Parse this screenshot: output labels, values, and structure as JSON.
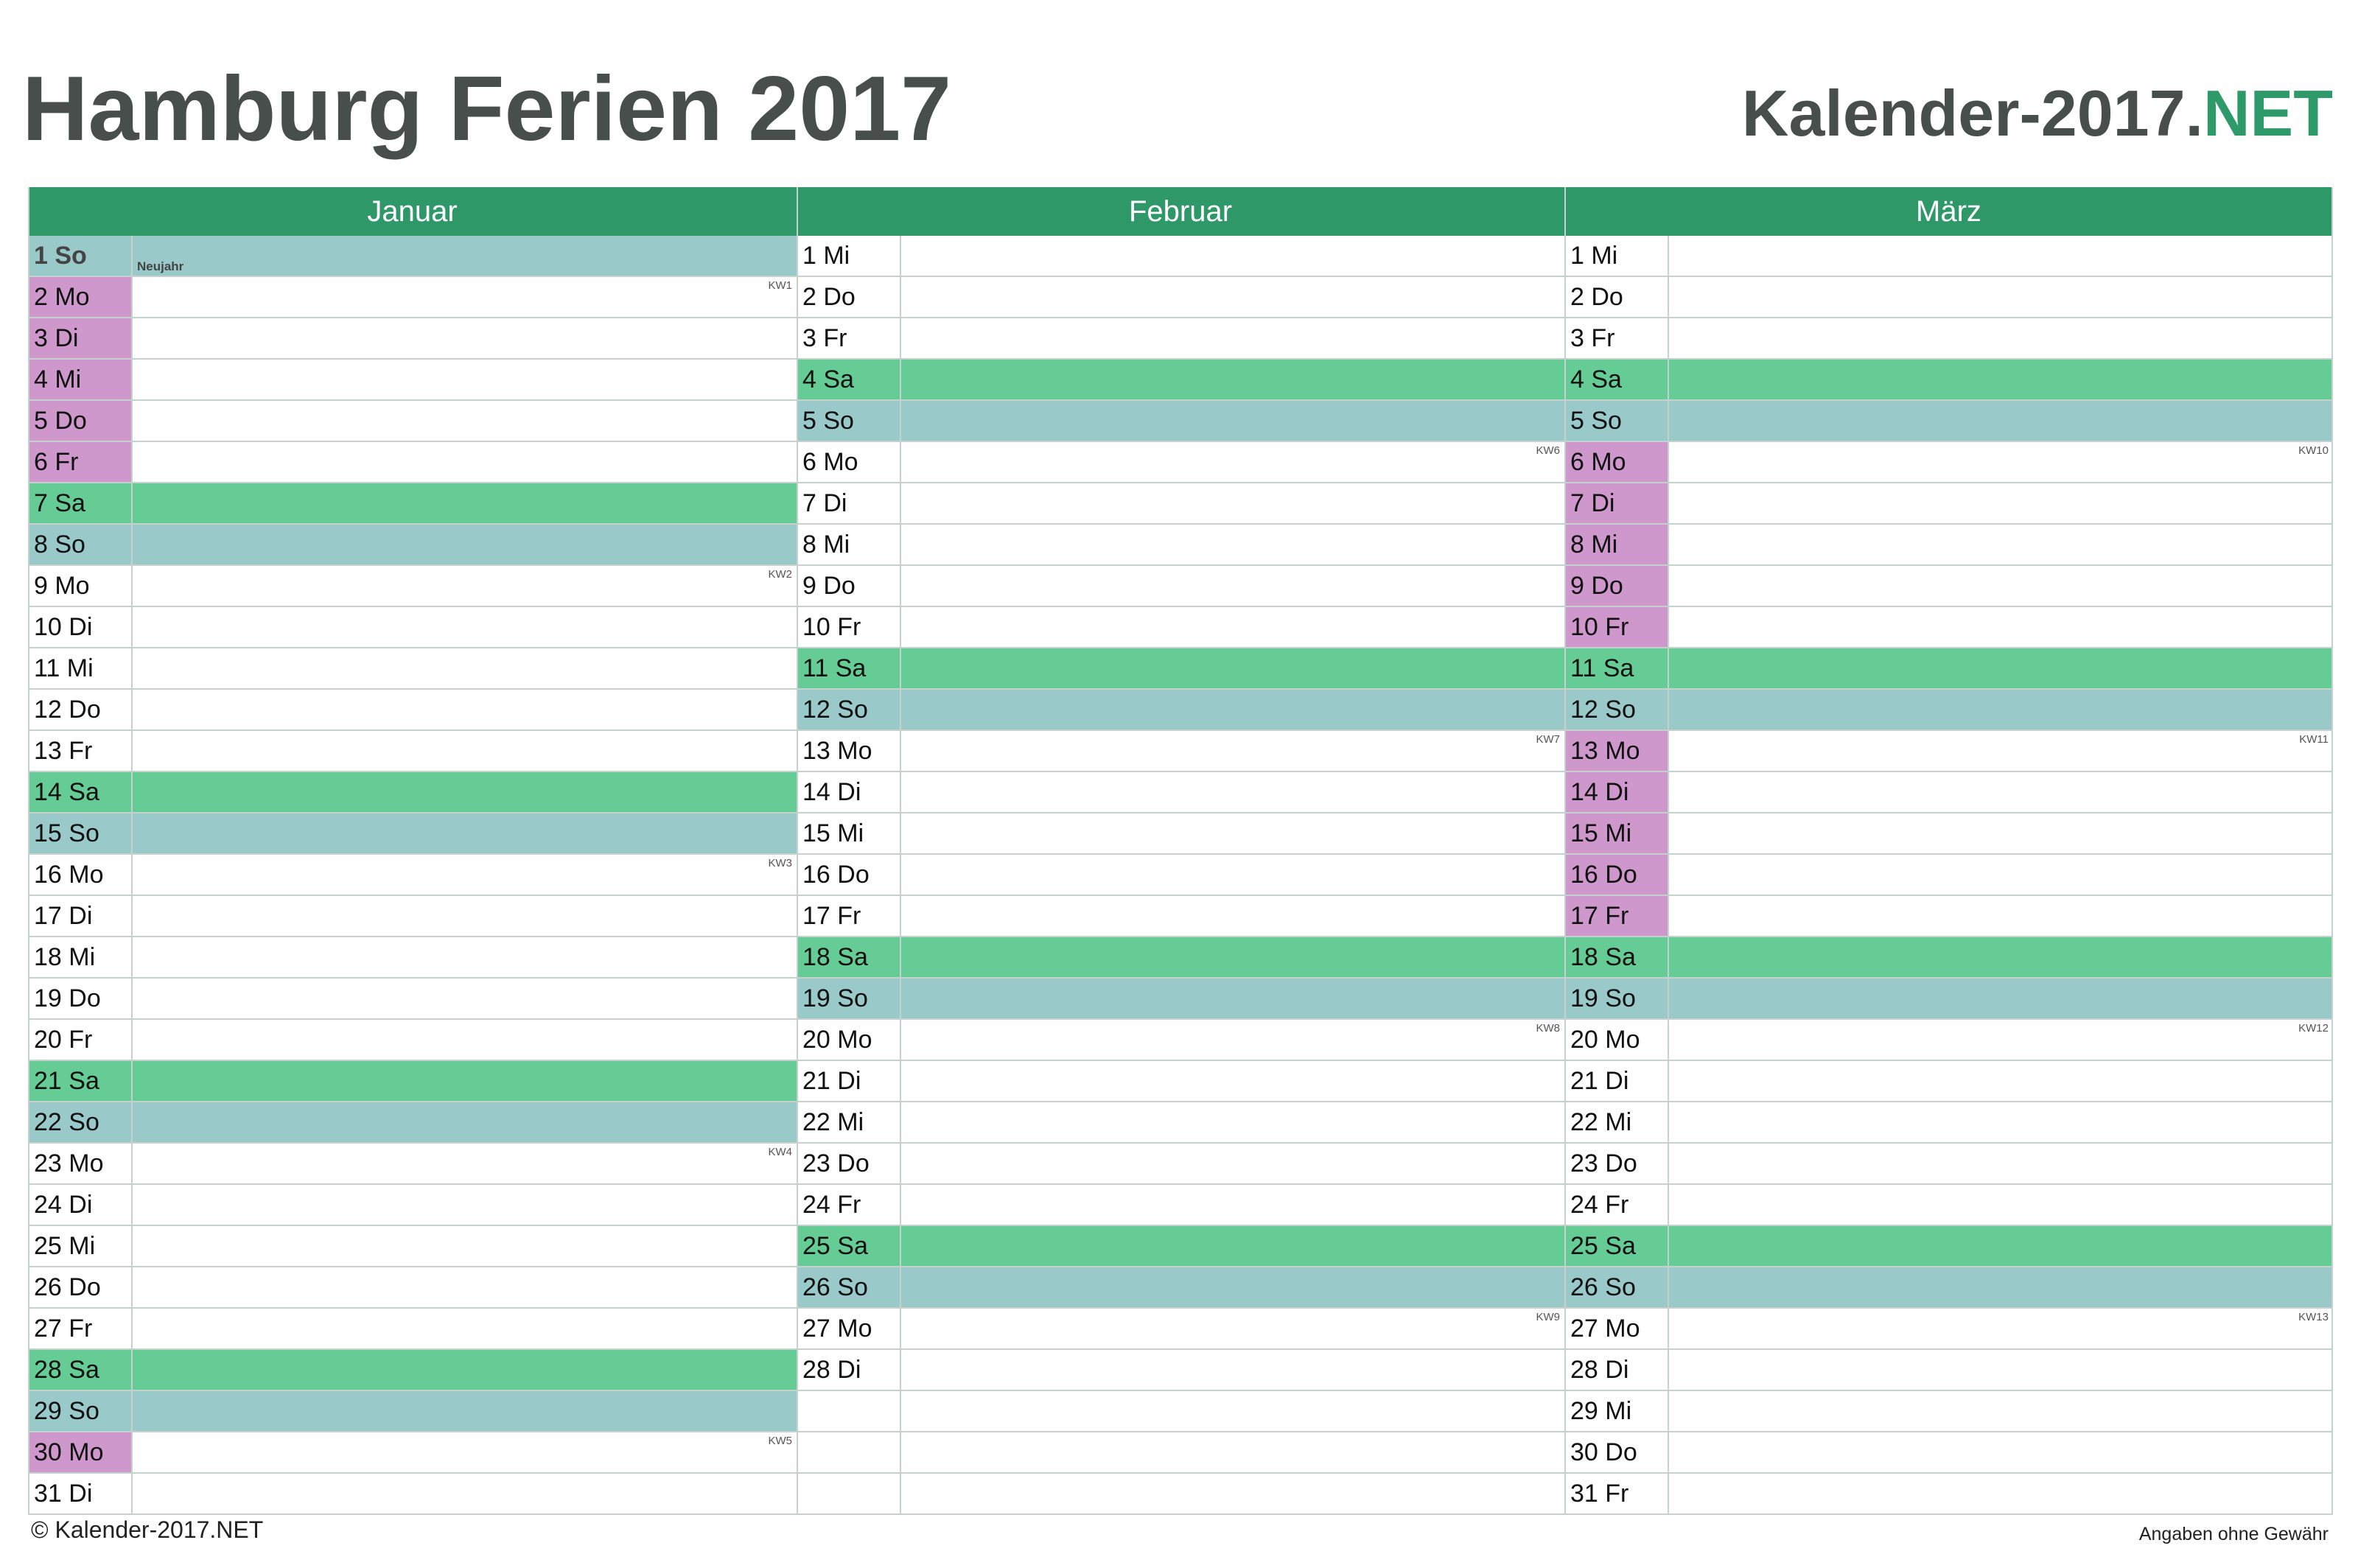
{
  "title": "Hamburg Ferien 2017",
  "brand": {
    "main": "Kalender-2017.",
    "suffix": "NET"
  },
  "colors": {
    "header": "#2f9869",
    "saturday": "#66cc96",
    "sunday": "#99c9c9",
    "vacation": "#cf98cc",
    "text": "#474e4c",
    "brand_accent": "#2e9a6a"
  },
  "months": [
    {
      "name": "Januar",
      "days": [
        {
          "label": "1 So",
          "type": "sun",
          "holiday": "Neujahr"
        },
        {
          "label": "2 Mo",
          "type": "vac",
          "kw": "KW1"
        },
        {
          "label": "3 Di",
          "type": "vac"
        },
        {
          "label": "4 Mi",
          "type": "vac"
        },
        {
          "label": "5 Do",
          "type": "vac"
        },
        {
          "label": "6 Fr",
          "type": "vac"
        },
        {
          "label": "7 Sa",
          "type": "sat"
        },
        {
          "label": "8 So",
          "type": "sun"
        },
        {
          "label": "9 Mo",
          "type": "",
          "kw": "KW2"
        },
        {
          "label": "10 Di",
          "type": ""
        },
        {
          "label": "11 Mi",
          "type": ""
        },
        {
          "label": "12 Do",
          "type": ""
        },
        {
          "label": "13 Fr",
          "type": ""
        },
        {
          "label": "14 Sa",
          "type": "sat"
        },
        {
          "label": "15 So",
          "type": "sun"
        },
        {
          "label": "16 Mo",
          "type": "",
          "kw": "KW3"
        },
        {
          "label": "17 Di",
          "type": ""
        },
        {
          "label": "18 Mi",
          "type": ""
        },
        {
          "label": "19 Do",
          "type": ""
        },
        {
          "label": "20 Fr",
          "type": ""
        },
        {
          "label": "21 Sa",
          "type": "sat"
        },
        {
          "label": "22 So",
          "type": "sun"
        },
        {
          "label": "23 Mo",
          "type": "",
          "kw": "KW4"
        },
        {
          "label": "24 Di",
          "type": ""
        },
        {
          "label": "25 Mi",
          "type": ""
        },
        {
          "label": "26 Do",
          "type": ""
        },
        {
          "label": "27 Fr",
          "type": ""
        },
        {
          "label": "28 Sa",
          "type": "sat"
        },
        {
          "label": "29 So",
          "type": "sun"
        },
        {
          "label": "30 Mo",
          "type": "vac",
          "kw": "KW5"
        },
        {
          "label": "31 Di",
          "type": ""
        }
      ]
    },
    {
      "name": "Februar",
      "days": [
        {
          "label": "1 Mi",
          "type": ""
        },
        {
          "label": "2 Do",
          "type": ""
        },
        {
          "label": "3 Fr",
          "type": ""
        },
        {
          "label": "4 Sa",
          "type": "sat"
        },
        {
          "label": "5 So",
          "type": "sun"
        },
        {
          "label": "6 Mo",
          "type": "",
          "kw": "KW6"
        },
        {
          "label": "7 Di",
          "type": ""
        },
        {
          "label": "8 Mi",
          "type": ""
        },
        {
          "label": "9 Do",
          "type": ""
        },
        {
          "label": "10 Fr",
          "type": ""
        },
        {
          "label": "11 Sa",
          "type": "sat"
        },
        {
          "label": "12 So",
          "type": "sun"
        },
        {
          "label": "13 Mo",
          "type": "",
          "kw": "KW7"
        },
        {
          "label": "14 Di",
          "type": ""
        },
        {
          "label": "15 Mi",
          "type": ""
        },
        {
          "label": "16 Do",
          "type": ""
        },
        {
          "label": "17 Fr",
          "type": ""
        },
        {
          "label": "18 Sa",
          "type": "sat"
        },
        {
          "label": "19 So",
          "type": "sun"
        },
        {
          "label": "20 Mo",
          "type": "",
          "kw": "KW8"
        },
        {
          "label": "21 Di",
          "type": ""
        },
        {
          "label": "22 Mi",
          "type": ""
        },
        {
          "label": "23 Do",
          "type": ""
        },
        {
          "label": "24 Fr",
          "type": ""
        },
        {
          "label": "25 Sa",
          "type": "sat"
        },
        {
          "label": "26 So",
          "type": "sun"
        },
        {
          "label": "27 Mo",
          "type": "",
          "kw": "KW9"
        },
        {
          "label": "28 Di",
          "type": ""
        }
      ]
    },
    {
      "name": "März",
      "days": [
        {
          "label": "1 Mi",
          "type": ""
        },
        {
          "label": "2 Do",
          "type": ""
        },
        {
          "label": "3 Fr",
          "type": ""
        },
        {
          "label": "4 Sa",
          "type": "sat"
        },
        {
          "label": "5 So",
          "type": "sun"
        },
        {
          "label": "6 Mo",
          "type": "vac",
          "kw": "KW10"
        },
        {
          "label": "7 Di",
          "type": "vac"
        },
        {
          "label": "8 Mi",
          "type": "vac"
        },
        {
          "label": "9 Do",
          "type": "vac"
        },
        {
          "label": "10 Fr",
          "type": "vac"
        },
        {
          "label": "11 Sa",
          "type": "sat"
        },
        {
          "label": "12 So",
          "type": "sun"
        },
        {
          "label": "13 Mo",
          "type": "vac",
          "kw": "KW11"
        },
        {
          "label": "14 Di",
          "type": "vac"
        },
        {
          "label": "15 Mi",
          "type": "vac"
        },
        {
          "label": "16 Do",
          "type": "vac"
        },
        {
          "label": "17 Fr",
          "type": "vac"
        },
        {
          "label": "18 Sa",
          "type": "sat"
        },
        {
          "label": "19 So",
          "type": "sun"
        },
        {
          "label": "20 Mo",
          "type": "",
          "kw": "KW12"
        },
        {
          "label": "21 Di",
          "type": ""
        },
        {
          "label": "22 Mi",
          "type": ""
        },
        {
          "label": "23 Do",
          "type": ""
        },
        {
          "label": "24 Fr",
          "type": ""
        },
        {
          "label": "25 Sa",
          "type": "sat"
        },
        {
          "label": "26 So",
          "type": "sun"
        },
        {
          "label": "27 Mo",
          "type": "",
          "kw": "KW13"
        },
        {
          "label": "28 Di",
          "type": ""
        },
        {
          "label": "29 Mi",
          "type": ""
        },
        {
          "label": "30 Do",
          "type": ""
        },
        {
          "label": "31 Fr",
          "type": ""
        }
      ]
    }
  ],
  "footer": {
    "copyright": "© Kalender-2017.NET",
    "disclaimer": "Angaben ohne Gewähr"
  }
}
